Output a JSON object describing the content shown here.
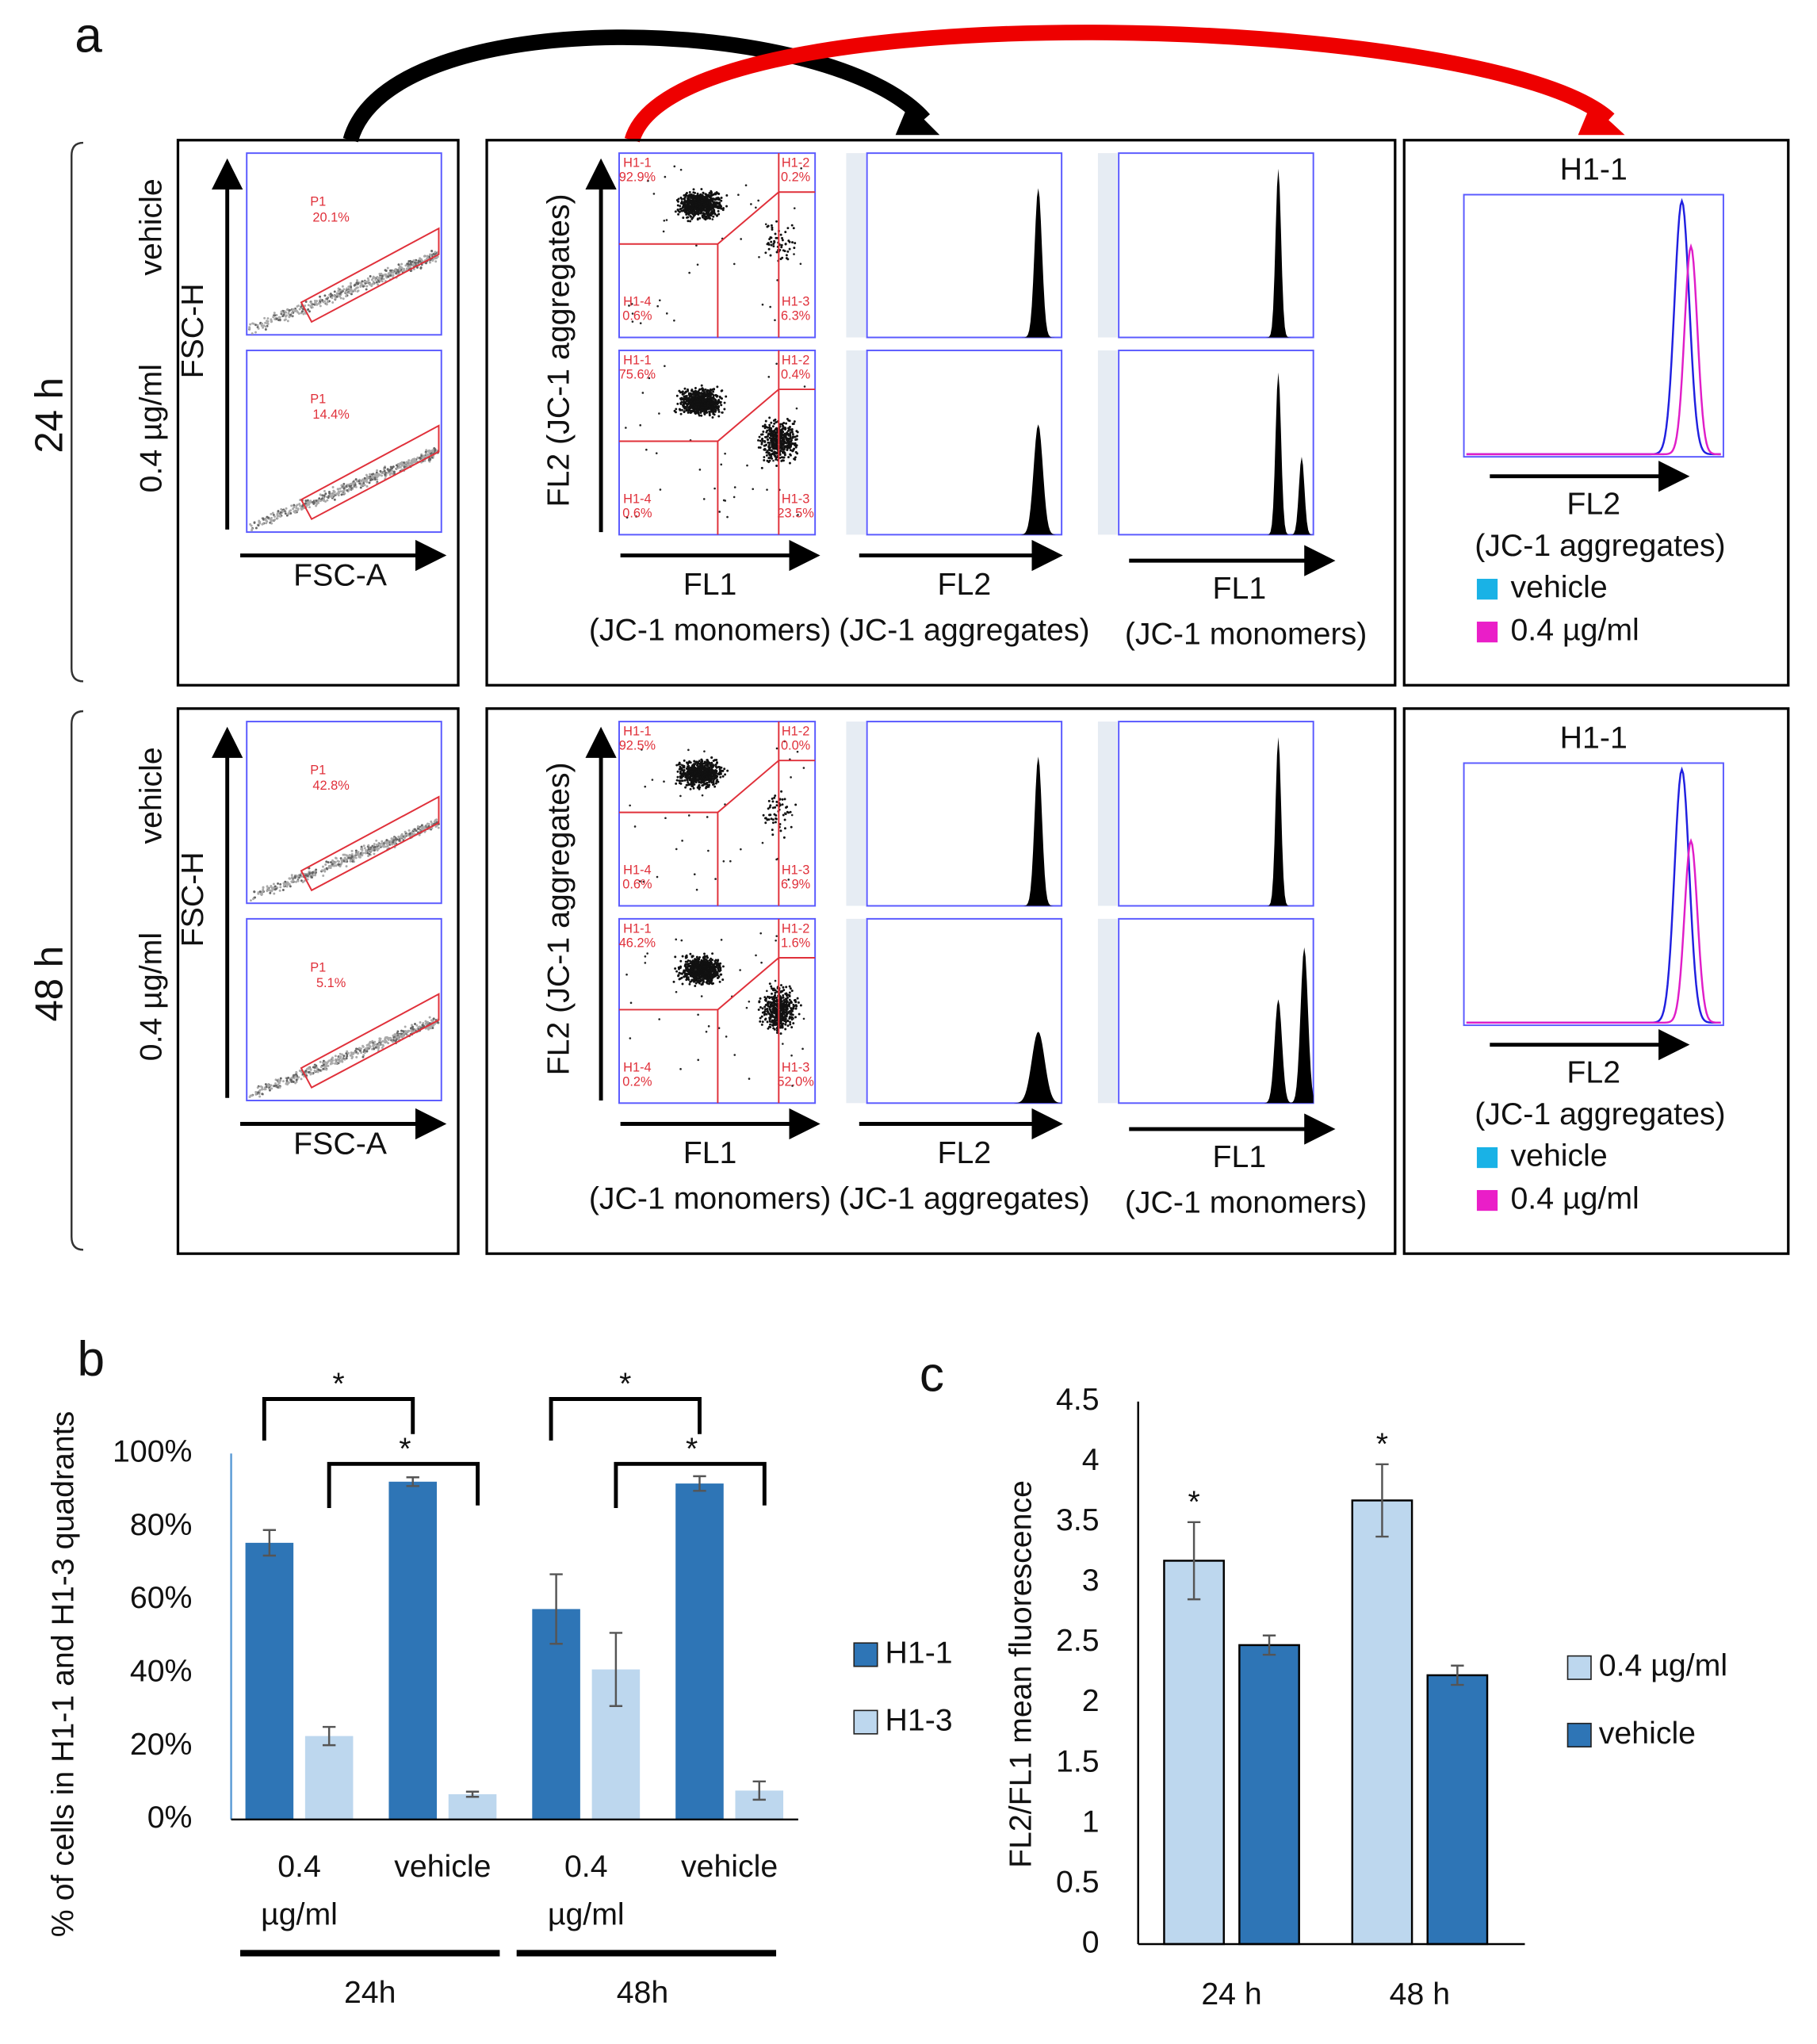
{
  "panel_a": {
    "label": "a",
    "fsc_y": "FSC-H",
    "fsc_x": "FSC-A",
    "fl2_axis": "FL2 (JC-1 aggregates)",
    "fl1_label": [
      "FL1",
      "(JC-1 monomers)"
    ],
    "fl2_label": [
      "FL2",
      "(JC-1 aggregates)"
    ],
    "overlay_title": "H1-1",
    "legend": [
      {
        "name": "vehicle",
        "color": "#19b2e6"
      },
      {
        "name": "0.4 µg/ml",
        "color": "#ea1ec8"
      }
    ],
    "rows": [
      {
        "time": "24 h",
        "conditions": [
          "vehicle",
          "0.4 µg/ml"
        ],
        "gates": [
          {
            "name": "P1",
            "pct": "20.1%"
          },
          {
            "name": "P1",
            "pct": "14.4%"
          }
        ],
        "quadrants": [
          [
            {
              "name": "H1-1",
              "pct": "92.9%"
            },
            {
              "name": "H1-2",
              "pct": "0.2%"
            },
            {
              "name": "H1-4",
              "pct": "0.6%"
            },
            {
              "name": "H1-3",
              "pct": "6.3%"
            }
          ],
          [
            {
              "name": "H1-1",
              "pct": "75.6%"
            },
            {
              "name": "H1-2",
              "pct": "0.4%"
            },
            {
              "name": "H1-4",
              "pct": "0.6%"
            },
            {
              "name": "H1-3",
              "pct": "23.5%"
            }
          ]
        ]
      },
      {
        "time": "48 h",
        "conditions": [
          "vehicle",
          "0.4 µg/ml"
        ],
        "gates": [
          {
            "name": "P1",
            "pct": "42.8%"
          },
          {
            "name": "P1",
            "pct": "5.1%"
          }
        ],
        "quadrants": [
          [
            {
              "name": "H1-1",
              "pct": "92.5%"
            },
            {
              "name": "H1-2",
              "pct": "0.0%"
            },
            {
              "name": "H1-4",
              "pct": "0.6%"
            },
            {
              "name": "H1-3",
              "pct": "6.9%"
            }
          ],
          [
            {
              "name": "H1-1",
              "pct": "46.2%"
            },
            {
              "name": "H1-2",
              "pct": "1.6%"
            },
            {
              "name": "H1-4",
              "pct": "0.2%"
            },
            {
              "name": "H1-3",
              "pct": "52.0%"
            }
          ]
        ]
      }
    ]
  },
  "panel_b": {
    "type": "bar",
    "label": "b",
    "y_label": "% of cells in H1-1 and H1-3 quadrants",
    "categories": [
      "0.4 µg/ml",
      "vehicle",
      "0.4 µg/ml",
      "vehicle"
    ],
    "groups": [
      "24h",
      "48h"
    ],
    "series": [
      {
        "name": "H1-1",
        "color": "#2e75b6",
        "values": [
          75.6,
          92.3,
          57.5,
          91.8
        ],
        "errors": [
          3.5,
          1.2,
          9.5,
          2
        ]
      },
      {
        "name": "H1-3",
        "color": "#bdd7ee",
        "values": [
          22.8,
          6.9,
          41,
          7.9
        ],
        "errors": [
          2.5,
          0.7,
          10,
          2.5
        ]
      }
    ],
    "ylim": [
      0,
      100
    ],
    "yticks": [
      {
        "value": 0,
        "label": "0%"
      },
      {
        "value": 20,
        "label": "20%"
      },
      {
        "value": 40,
        "label": "40%"
      },
      {
        "value": 60,
        "label": "60%"
      },
      {
        "value": 80,
        "label": "80%"
      },
      {
        "value": 100,
        "label": "100%"
      }
    ],
    "annotations": [
      "*",
      "*",
      "*",
      "*"
    ]
  },
  "panel_c": {
    "type": "bar",
    "label": "c",
    "y_label": "FL2/FL1 mean fluorescence",
    "categories": [
      "24 h",
      "48 h"
    ],
    "series": [
      {
        "name": "0.4 µg/ml",
        "color": "#bdd7ee",
        "values": [
          3.18,
          3.68
        ],
        "errors": [
          0.32,
          0.3
        ]
      },
      {
        "name": "vehicle",
        "color": "#2e75b6",
        "values": [
          2.48,
          2.23
        ],
        "errors": [
          0.08,
          0.08
        ]
      }
    ],
    "ylim": [
      0,
      4.5
    ],
    "yticks": [
      0,
      0.5,
      1,
      1.5,
      2,
      2.5,
      3,
      3.5,
      4,
      4.5
    ],
    "annotations": [
      "*",
      "*"
    ]
  }
}
